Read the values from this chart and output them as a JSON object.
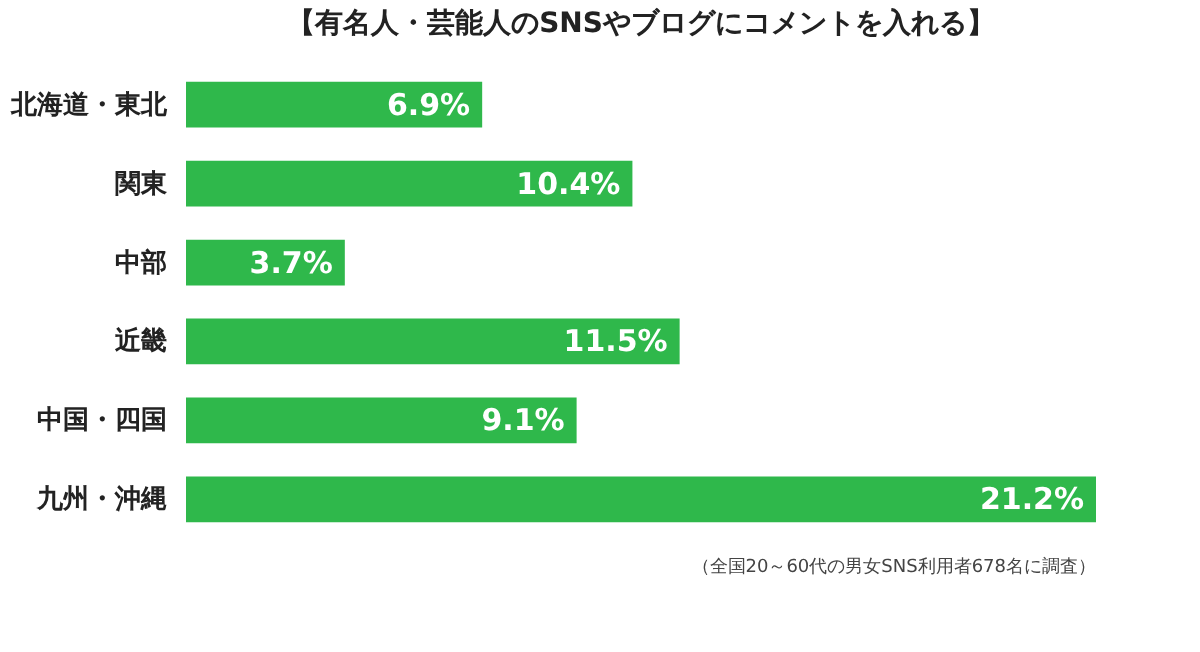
{
  "chart_data": {
    "type": "bar",
    "orientation": "horizontal",
    "title": "【有名人・芸能人のSNSやブログにコメントを入れる】",
    "categories": [
      "北海道・東北",
      "関東",
      "中部",
      "近畿",
      "中国・四国",
      "九州・沖縄"
    ],
    "values": [
      6.9,
      10.4,
      3.7,
      11.5,
      9.1,
      21.2
    ],
    "value_labels": [
      "6.9%",
      "10.4%",
      "3.7%",
      "11.5%",
      "9.1%",
      "21.2%"
    ],
    "color": "#2fb84b",
    "annotations": [
      "（全国20～60代の男女SNS利用者678名に調査）"
    ]
  }
}
